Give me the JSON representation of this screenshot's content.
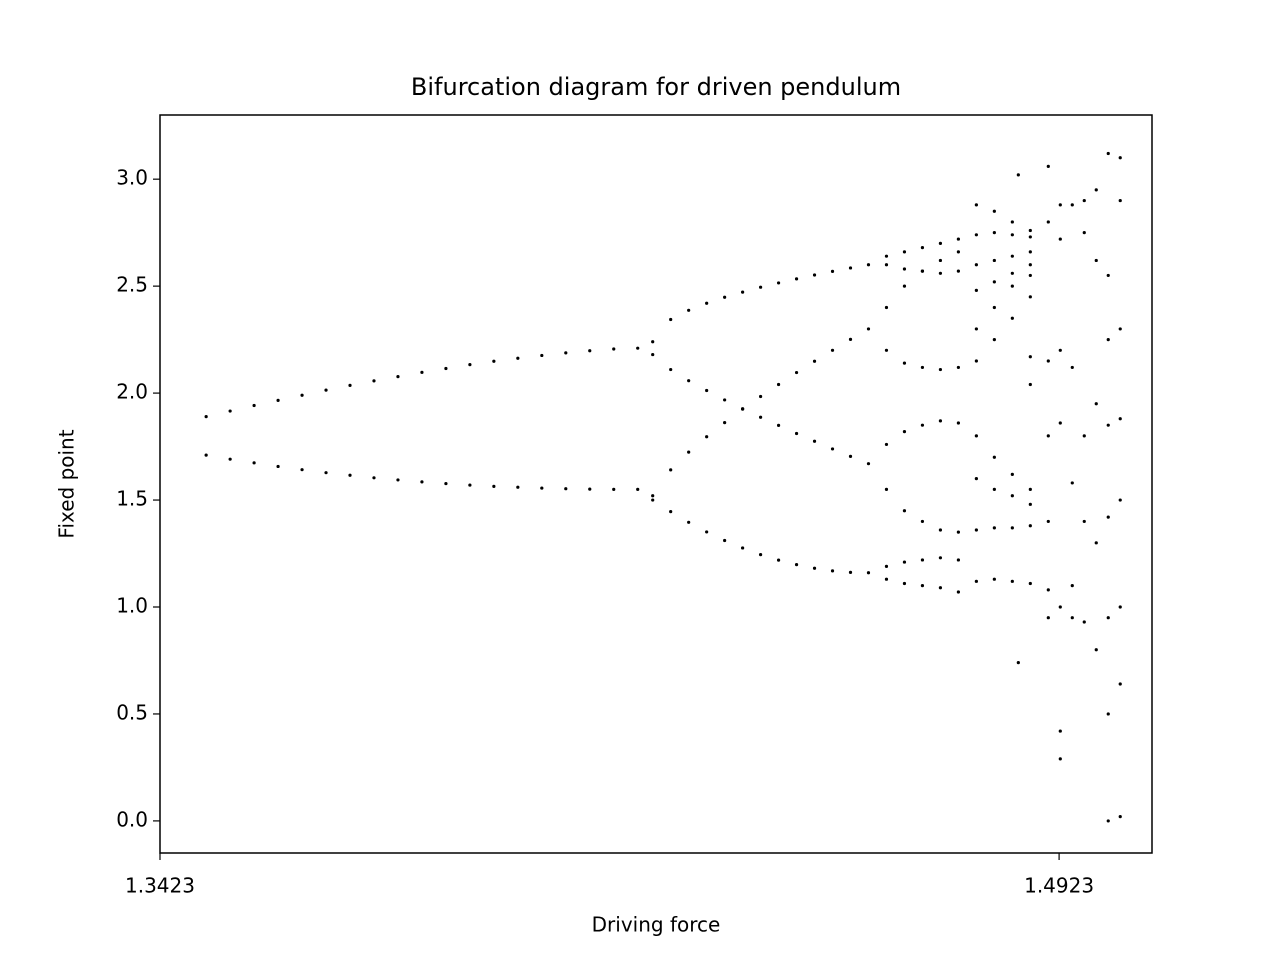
{
  "chart_data": {
    "type": "scatter",
    "title": "Bifurcation diagram for driven pendulum",
    "x_label": "Driving force",
    "y_label": "Fixed point",
    "color": "#000000",
    "xlim": [
      1.3423,
      1.5078
    ],
    "ylim": [
      -0.15,
      3.3
    ],
    "xticks": [
      1.3423,
      1.4923
    ],
    "yticks": [
      {
        "value": 0,
        "label": "0.0"
      },
      0.5,
      {
        "value": 1,
        "label": "1.0"
      },
      1.5,
      {
        "value": 2,
        "label": "2.0"
      },
      2.5,
      {
        "value": 3,
        "label": "3.0"
      }
    ],
    "x": [
      1.35,
      1.354,
      1.358,
      1.362,
      1.366,
      1.37,
      1.374,
      1.378,
      1.382,
      1.386,
      1.39,
      1.394,
      1.398,
      1.402,
      1.406,
      1.41,
      1.414,
      1.418,
      1.422,
      1.35,
      1.354,
      1.358,
      1.362,
      1.366,
      1.37,
      1.374,
      1.378,
      1.382,
      1.386,
      1.39,
      1.394,
      1.398,
      1.402,
      1.406,
      1.41,
      1.414,
      1.418,
      1.422,
      1.4245,
      1.4275,
      1.4305,
      1.4335,
      1.4365,
      1.4395,
      1.4425,
      1.4455,
      1.4485,
      1.4515,
      1.4545,
      1.4575,
      1.4605,
      1.4245,
      1.4275,
      1.4305,
      1.4335,
      1.4365,
      1.4395,
      1.4425,
      1.4455,
      1.4485,
      1.4515,
      1.4545,
      1.4575,
      1.4605,
      1.4245,
      1.4275,
      1.4305,
      1.4335,
      1.4365,
      1.4395,
      1.4425,
      1.4455,
      1.4485,
      1.4515,
      1.4545,
      1.4575,
      1.4605,
      1.4245,
      1.4275,
      1.4305,
      1.4335,
      1.4365,
      1.4395,
      1.4425,
      1.4455,
      1.4485,
      1.4515,
      1.4545,
      1.4575,
      1.4605,
      1.4635,
      1.4665,
      1.4695,
      1.4725,
      1.4755,
      1.4635,
      1.4665,
      1.4695,
      1.4725,
      1.4755,
      1.4635,
      1.4665,
      1.4695,
      1.4725,
      1.4755,
      1.4635,
      1.4665,
      1.4695,
      1.4725,
      1.4755,
      1.4635,
      1.4665,
      1.4695,
      1.4725,
      1.4755,
      1.4635,
      1.4665,
      1.4695,
      1.4725,
      1.4755,
      1.4635,
      1.4665,
      1.4695,
      1.4725,
      1.4755,
      1.4635,
      1.4665,
      1.4695,
      1.4725,
      1.4755,
      1.4785,
      1.4815,
      1.4845,
      1.4875,
      1.4785,
      1.4815,
      1.4845,
      1.4875,
      1.4785,
      1.4815,
      1.4845,
      1.4875,
      1.4785,
      1.4815,
      1.4845,
      1.4875,
      1.4785,
      1.4815,
      1.4845,
      1.4875,
      1.4785,
      1.4815,
      1.4845,
      1.4875,
      1.4785,
      1.4815,
      1.4845,
      1.4875,
      1.4785,
      1.4815,
      1.4845,
      1.4875,
      1.4785,
      1.4815,
      1.4845,
      1.4875,
      1.4785,
      1.4815,
      1.4845,
      1.4875,
      1.4905,
      1.4905,
      1.4905,
      1.4905,
      1.4905,
      1.4905,
      1.4905,
      1.4925,
      1.4925,
      1.4925,
      1.4925,
      1.4925,
      1.4925,
      1.4925,
      1.4945,
      1.4945,
      1.4945,
      1.4945,
      1.4945,
      1.4965,
      1.4965,
      1.4965,
      1.4965,
      1.4965,
      1.4985,
      1.4985,
      1.4985,
      1.4985,
      1.4985,
      1.5005,
      1.5005,
      1.5005,
      1.5005,
      1.5005,
      1.5005,
      1.5005,
      1.5005,
      1.5025,
      1.5025,
      1.5025,
      1.5025,
      1.5025,
      1.5025,
      1.5025,
      1.5025,
      1.4855,
      1.4855,
      1.4875,
      1.4875
    ],
    "values": [
      1.89,
      1.916,
      1.942,
      1.966,
      1.99,
      2.014,
      2.036,
      2.057,
      2.077,
      2.097,
      2.115,
      2.133,
      2.149,
      2.163,
      2.176,
      2.188,
      2.198,
      2.206,
      2.21,
      1.71,
      1.691,
      1.674,
      1.657,
      1.642,
      1.628,
      1.616,
      1.604,
      1.594,
      1.585,
      1.577,
      1.57,
      1.564,
      1.56,
      1.556,
      1.553,
      1.551,
      1.55,
      1.55,
      2.24,
      2.344,
      2.387,
      2.42,
      2.448,
      2.472,
      2.495,
      2.515,
      2.534,
      2.552,
      2.569,
      2.585,
      2.6,
      2.18,
      2.11,
      2.058,
      2.012,
      1.968,
      1.927,
      1.887,
      1.849,
      1.811,
      1.775,
      1.739,
      1.704,
      1.67,
      1.52,
      1.641,
      1.724,
      1.796,
      1.862,
      1.925,
      1.984,
      2.04,
      2.096,
      2.149,
      2.2,
      2.251,
      2.3,
      1.5,
      1.446,
      1.396,
      1.351,
      1.311,
      1.276,
      1.245,
      1.219,
      1.198,
      1.181,
      1.169,
      1.162,
      1.16,
      2.64,
      2.66,
      2.68,
      2.7,
      2.72,
      2.6,
      2.58,
      2.57,
      2.56,
      2.57,
      2.4,
      2.5,
      2.57,
      2.62,
      2.66,
      2.2,
      2.14,
      2.12,
      2.11,
      2.12,
      1.76,
      1.82,
      1.85,
      1.87,
      1.86,
      1.55,
      1.45,
      1.4,
      1.36,
      1.35,
      1.19,
      1.21,
      1.22,
      1.23,
      1.22,
      1.13,
      1.11,
      1.1,
      1.09,
      1.07,
      2.74,
      2.75,
      2.74,
      2.73,
      2.88,
      2.85,
      2.8,
      2.76,
      2.6,
      2.62,
      2.64,
      2.66,
      2.48,
      2.52,
      2.56,
      2.6,
      2.15,
      2.25,
      2.35,
      2.45,
      2.3,
      2.4,
      2.5,
      2.55,
      1.8,
      1.7,
      1.62,
      1.55,
      1.6,
      1.55,
      1.52,
      1.48,
      1.36,
      1.37,
      1.37,
      1.38,
      1.12,
      1.13,
      1.12,
      1.11,
      2.8,
      2.15,
      1.8,
      1.4,
      1.08,
      0.95,
      3.06,
      0.42,
      0.29,
      2.2,
      1.86,
      1.0,
      2.88,
      2.72,
      1.1,
      2.88,
      0.95,
      1.58,
      2.12,
      2.75,
      1.4,
      0.93,
      2.9,
      1.8,
      2.95,
      2.62,
      1.95,
      1.3,
      0.8,
      3.12,
      0.5,
      0.0,
      2.25,
      1.85,
      1.42,
      0.95,
      2.55,
      3.1,
      0.02,
      0.64,
      1.88,
      2.3,
      1.0,
      2.9,
      1.5,
      3.02,
      0.74,
      2.17,
      2.04
    ]
  }
}
